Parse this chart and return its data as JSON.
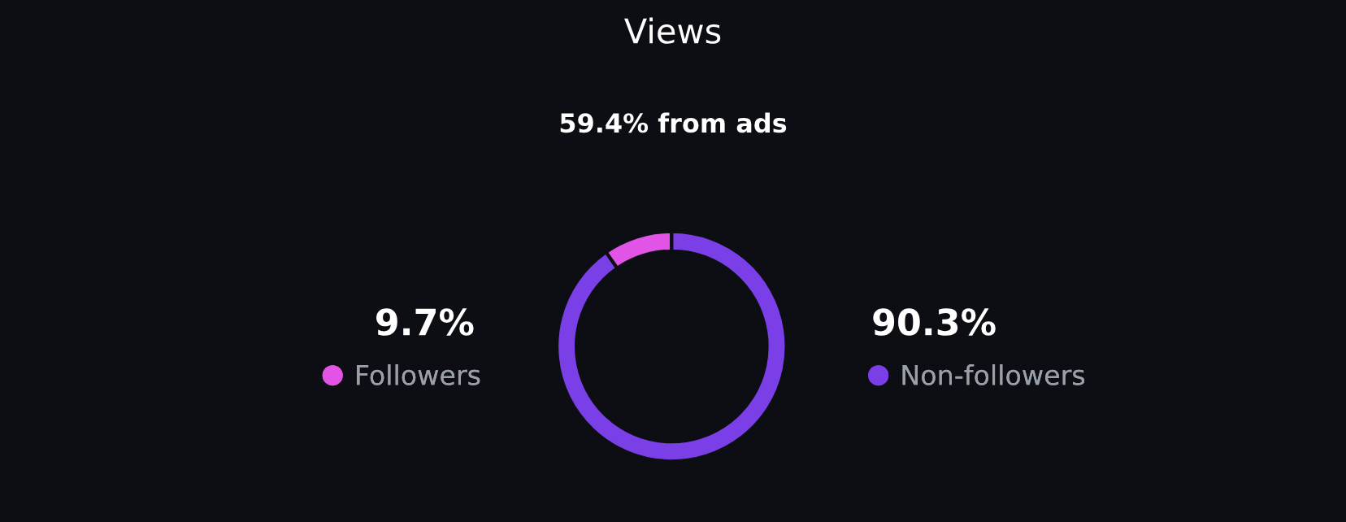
{
  "chart_data": {
    "type": "donut",
    "title": "Views",
    "subtitle": "59.4% from ads",
    "categories": [
      "Followers",
      "Non-followers"
    ],
    "values": [
      9.7,
      90.3
    ],
    "colors": [
      "#e254e6",
      "#7a3fe6"
    ],
    "value_labels": [
      "9.7%",
      "90.3%"
    ],
    "legend": "bottom"
  }
}
